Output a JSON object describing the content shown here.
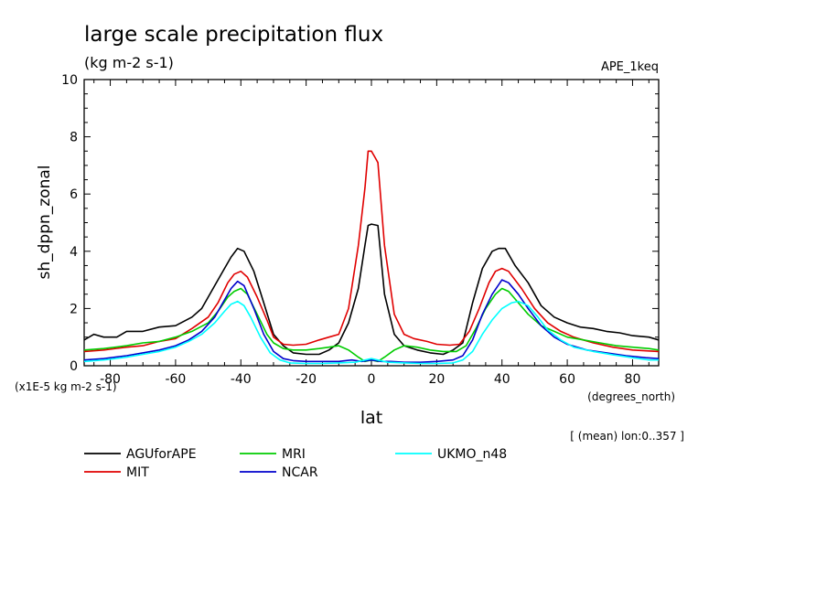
{
  "title": "large scale precipitation flux",
  "units": "(kg m-2 s-1)",
  "experiment": "APE_1keq",
  "ylabel": "sh_dppn_zonal",
  "xlabel": "lat",
  "x_units": "(degrees_north)",
  "y_scale_note": "(x1E-5 kg m-2 s-1)",
  "averaging_note": "[ (mean) lon:0..357 ]",
  "chart_data": {
    "type": "line",
    "title": "large scale precipitation flux",
    "xlabel": "lat",
    "ylabel": "sh_dppn_zonal",
    "xlim": [
      -88,
      88
    ],
    "ylim": [
      0,
      10
    ],
    "xticks": [
      -80,
      -60,
      -40,
      -20,
      0,
      20,
      40,
      60,
      80
    ],
    "xtick_labels": [
      "-80",
      "-60",
      "-40",
      "-20",
      "0",
      "20",
      "40",
      "60",
      "80"
    ],
    "yticks": [
      0,
      2,
      4,
      6,
      8,
      10
    ],
    "ytick_labels": [
      "0",
      "2",
      "4",
      "6",
      "8",
      "10"
    ],
    "grid": false,
    "legend_position": "bottom",
    "series": [
      {
        "name": "AGUforAPE",
        "color": "#000000",
        "points": [
          [
            -88,
            0.9
          ],
          [
            -85,
            1.1
          ],
          [
            -82,
            1.0
          ],
          [
            -78,
            1.0
          ],
          [
            -75,
            1.2
          ],
          [
            -70,
            1.2
          ],
          [
            -65,
            1.35
          ],
          [
            -60,
            1.4
          ],
          [
            -55,
            1.7
          ],
          [
            -52,
            2.0
          ],
          [
            -48,
            2.8
          ],
          [
            -45,
            3.4
          ],
          [
            -43,
            3.8
          ],
          [
            -41,
            4.1
          ],
          [
            -39,
            4.0
          ],
          [
            -36,
            3.3
          ],
          [
            -33,
            2.2
          ],
          [
            -30,
            1.1
          ],
          [
            -27,
            0.7
          ],
          [
            -24,
            0.45
          ],
          [
            -20,
            0.4
          ],
          [
            -16,
            0.4
          ],
          [
            -13,
            0.55
          ],
          [
            -10,
            0.8
          ],
          [
            -7,
            1.5
          ],
          [
            -4,
            2.7
          ],
          [
            -2,
            4.2
          ],
          [
            -1,
            4.9
          ],
          [
            0,
            4.95
          ],
          [
            2,
            4.9
          ],
          [
            4,
            2.5
          ],
          [
            7,
            1.1
          ],
          [
            10,
            0.7
          ],
          [
            14,
            0.55
          ],
          [
            18,
            0.45
          ],
          [
            22,
            0.4
          ],
          [
            25,
            0.55
          ],
          [
            28,
            0.8
          ],
          [
            31,
            2.2
          ],
          [
            34,
            3.4
          ],
          [
            37,
            4.0
          ],
          [
            39,
            4.1
          ],
          [
            41,
            4.1
          ],
          [
            44,
            3.5
          ],
          [
            48,
            2.9
          ],
          [
            52,
            2.1
          ],
          [
            56,
            1.7
          ],
          [
            60,
            1.5
          ],
          [
            64,
            1.35
          ],
          [
            68,
            1.3
          ],
          [
            72,
            1.2
          ],
          [
            76,
            1.15
          ],
          [
            80,
            1.05
          ],
          [
            85,
            1.0
          ],
          [
            88,
            0.9
          ]
        ]
      },
      {
        "name": "MIT",
        "color": "#e00000",
        "points": [
          [
            -88,
            0.5
          ],
          [
            -82,
            0.55
          ],
          [
            -75,
            0.65
          ],
          [
            -70,
            0.7
          ],
          [
            -65,
            0.85
          ],
          [
            -60,
            0.95
          ],
          [
            -55,
            1.3
          ],
          [
            -50,
            1.7
          ],
          [
            -47,
            2.2
          ],
          [
            -44,
            2.9
          ],
          [
            -42,
            3.2
          ],
          [
            -40,
            3.3
          ],
          [
            -38,
            3.1
          ],
          [
            -35,
            2.4
          ],
          [
            -32,
            1.6
          ],
          [
            -30,
            1.0
          ],
          [
            -27,
            0.75
          ],
          [
            -24,
            0.72
          ],
          [
            -20,
            0.75
          ],
          [
            -16,
            0.9
          ],
          [
            -13,
            1.0
          ],
          [
            -10,
            1.1
          ],
          [
            -7,
            2.0
          ],
          [
            -4,
            4.2
          ],
          [
            -2,
            6.2
          ],
          [
            -1,
            7.5
          ],
          [
            0,
            7.5
          ],
          [
            1,
            7.3
          ],
          [
            2,
            7.1
          ],
          [
            4,
            4.2
          ],
          [
            7,
            1.8
          ],
          [
            10,
            1.1
          ],
          [
            13,
            0.95
          ],
          [
            17,
            0.85
          ],
          [
            20,
            0.75
          ],
          [
            24,
            0.72
          ],
          [
            27,
            0.75
          ],
          [
            30,
            1.2
          ],
          [
            33,
            2.0
          ],
          [
            36,
            2.9
          ],
          [
            38,
            3.3
          ],
          [
            40,
            3.4
          ],
          [
            42,
            3.3
          ],
          [
            46,
            2.7
          ],
          [
            50,
            2.0
          ],
          [
            54,
            1.5
          ],
          [
            58,
            1.2
          ],
          [
            62,
            1.0
          ],
          [
            68,
            0.8
          ],
          [
            74,
            0.65
          ],
          [
            80,
            0.55
          ],
          [
            88,
            0.5
          ]
        ]
      },
      {
        "name": "MRI",
        "color": "#00cc00",
        "points": [
          [
            -88,
            0.55
          ],
          [
            -82,
            0.6
          ],
          [
            -75,
            0.7
          ],
          [
            -70,
            0.8
          ],
          [
            -65,
            0.85
          ],
          [
            -60,
            1.0
          ],
          [
            -55,
            1.2
          ],
          [
            -50,
            1.5
          ],
          [
            -47,
            1.9
          ],
          [
            -44,
            2.4
          ],
          [
            -42,
            2.6
          ],
          [
            -40,
            2.7
          ],
          [
            -38,
            2.5
          ],
          [
            -35,
            1.8
          ],
          [
            -32,
            1.1
          ],
          [
            -30,
            0.8
          ],
          [
            -27,
            0.6
          ],
          [
            -24,
            0.55
          ],
          [
            -20,
            0.55
          ],
          [
            -16,
            0.6
          ],
          [
            -13,
            0.65
          ],
          [
            -10,
            0.7
          ],
          [
            -7,
            0.55
          ],
          [
            -4,
            0.3
          ],
          [
            -2,
            0.15
          ],
          [
            0,
            0.2
          ],
          [
            2,
            0.15
          ],
          [
            4,
            0.3
          ],
          [
            7,
            0.55
          ],
          [
            10,
            0.7
          ],
          [
            14,
            0.65
          ],
          [
            18,
            0.55
          ],
          [
            22,
            0.5
          ],
          [
            26,
            0.5
          ],
          [
            29,
            0.7
          ],
          [
            32,
            1.3
          ],
          [
            35,
            2.0
          ],
          [
            38,
            2.5
          ],
          [
            40,
            2.7
          ],
          [
            42,
            2.6
          ],
          [
            45,
            2.2
          ],
          [
            48,
            1.8
          ],
          [
            52,
            1.4
          ],
          [
            56,
            1.2
          ],
          [
            60,
            1.0
          ],
          [
            65,
            0.9
          ],
          [
            70,
            0.8
          ],
          [
            75,
            0.7
          ],
          [
            80,
            0.65
          ],
          [
            85,
            0.6
          ],
          [
            88,
            0.55
          ]
        ]
      },
      {
        "name": "NCAR",
        "color": "#0000cc",
        "points": [
          [
            -88,
            0.2
          ],
          [
            -82,
            0.25
          ],
          [
            -75,
            0.35
          ],
          [
            -70,
            0.45
          ],
          [
            -65,
            0.55
          ],
          [
            -60,
            0.7
          ],
          [
            -56,
            0.9
          ],
          [
            -52,
            1.2
          ],
          [
            -48,
            1.7
          ],
          [
            -45,
            2.3
          ],
          [
            -43,
            2.7
          ],
          [
            -41,
            2.95
          ],
          [
            -39,
            2.8
          ],
          [
            -36,
            2.0
          ],
          [
            -33,
            1.1
          ],
          [
            -30,
            0.5
          ],
          [
            -27,
            0.25
          ],
          [
            -24,
            0.18
          ],
          [
            -20,
            0.15
          ],
          [
            -15,
            0.15
          ],
          [
            -10,
            0.15
          ],
          [
            -6,
            0.2
          ],
          [
            -3,
            0.15
          ],
          [
            0,
            0.2
          ],
          [
            3,
            0.15
          ],
          [
            6,
            0.15
          ],
          [
            10,
            0.12
          ],
          [
            15,
            0.12
          ],
          [
            20,
            0.15
          ],
          [
            25,
            0.2
          ],
          [
            28,
            0.35
          ],
          [
            31,
            0.9
          ],
          [
            34,
            1.8
          ],
          [
            37,
            2.5
          ],
          [
            40,
            3.0
          ],
          [
            42,
            2.9
          ],
          [
            45,
            2.5
          ],
          [
            48,
            2.0
          ],
          [
            52,
            1.4
          ],
          [
            56,
            1.0
          ],
          [
            60,
            0.75
          ],
          [
            66,
            0.55
          ],
          [
            72,
            0.45
          ],
          [
            78,
            0.35
          ],
          [
            84,
            0.28
          ],
          [
            88,
            0.25
          ]
        ]
      },
      {
        "name": "UKMO_n48",
        "color": "#00ffff",
        "points": [
          [
            -88,
            0.15
          ],
          [
            -82,
            0.2
          ],
          [
            -75,
            0.3
          ],
          [
            -70,
            0.4
          ],
          [
            -65,
            0.5
          ],
          [
            -60,
            0.65
          ],
          [
            -56,
            0.85
          ],
          [
            -52,
            1.1
          ],
          [
            -48,
            1.5
          ],
          [
            -45,
            1.9
          ],
          [
            -43,
            2.15
          ],
          [
            -41,
            2.25
          ],
          [
            -39,
            2.1
          ],
          [
            -37,
            1.7
          ],
          [
            -34,
            1.0
          ],
          [
            -31,
            0.45
          ],
          [
            -28,
            0.2
          ],
          [
            -25,
            0.1
          ],
          [
            -20,
            0.08
          ],
          [
            -15,
            0.08
          ],
          [
            -10,
            0.1
          ],
          [
            -5,
            0.12
          ],
          [
            0,
            0.25
          ],
          [
            5,
            0.12
          ],
          [
            10,
            0.1
          ],
          [
            15,
            0.08
          ],
          [
            20,
            0.08
          ],
          [
            25,
            0.1
          ],
          [
            28,
            0.2
          ],
          [
            31,
            0.5
          ],
          [
            34,
            1.1
          ],
          [
            37,
            1.6
          ],
          [
            40,
            2.0
          ],
          [
            43,
            2.2
          ],
          [
            45,
            2.25
          ],
          [
            48,
            2.1
          ],
          [
            51,
            1.7
          ],
          [
            54,
            1.25
          ],
          [
            58,
            0.9
          ],
          [
            62,
            0.65
          ],
          [
            68,
            0.5
          ],
          [
            74,
            0.38
          ],
          [
            80,
            0.28
          ],
          [
            85,
            0.2
          ],
          [
            88,
            0.2
          ]
        ]
      }
    ]
  }
}
